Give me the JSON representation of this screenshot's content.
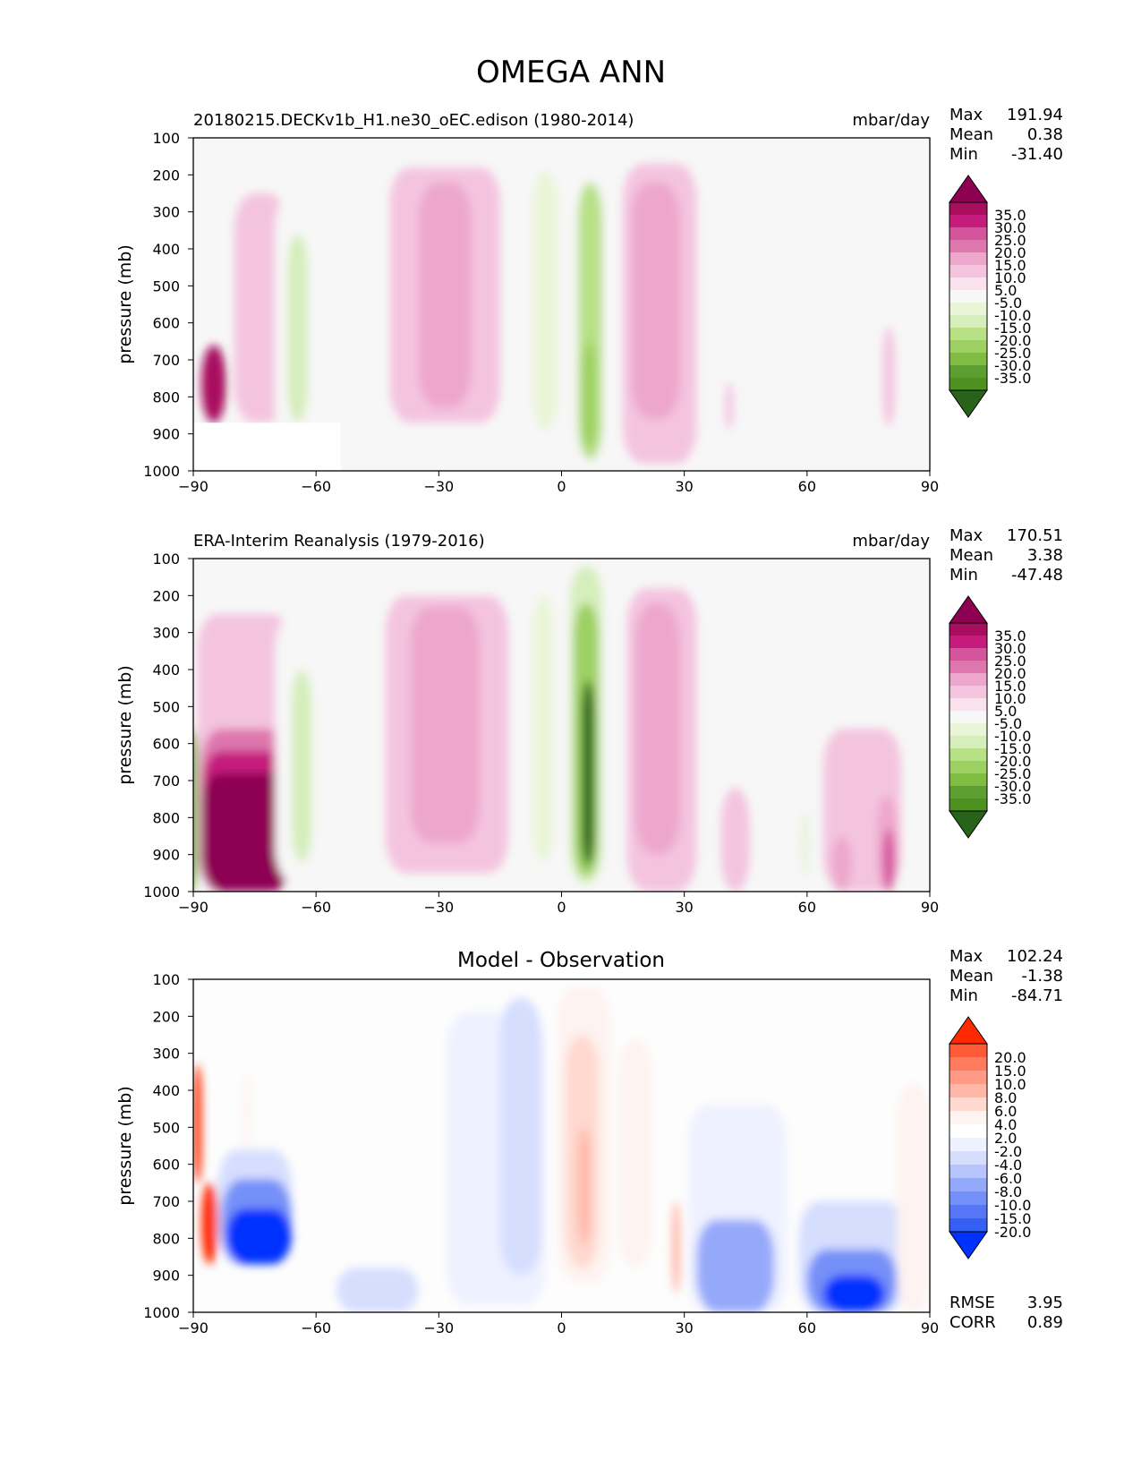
{
  "title": "OMEGA ANN",
  "palettes": {
    "field": [
      "#8e0152",
      "#a80e5e",
      "#c51b7d",
      "#d5559c",
      "#de77ae",
      "#eda7cc",
      "#f4c4df",
      "#f9e1ee",
      "#f7f7f7",
      "#e9f5d6",
      "#d5eebb",
      "#b8e186",
      "#9dd062",
      "#7fbc41",
      "#5c9e32",
      "#4d9221",
      "#276419"
    ],
    "diff": [
      "#ff2a00",
      "#ff5a38",
      "#ff7b5e",
      "#ff9a84",
      "#ffb8a8",
      "#ffd8cf",
      "#fdf3f0",
      "#ffffff",
      "#eef1ff",
      "#d6defe",
      "#b7c5fc",
      "#95a9fa",
      "#7490f8",
      "#5577f6",
      "#3660f5",
      "#0032ff"
    ]
  },
  "colorbars": {
    "field": {
      "ticks": [
        "35.0",
        "30.0",
        "25.0",
        "20.0",
        "15.0",
        "10.0",
        "5.0",
        "-5.0",
        "-10.0",
        "-15.0",
        "-20.0",
        "-25.0",
        "-30.0",
        "-35.0"
      ]
    },
    "diff": {
      "ticks": [
        "20.0",
        "15.0",
        "10.0",
        "8.0",
        "6.0",
        "4.0",
        "2.0",
        "-2.0",
        "-4.0",
        "-6.0",
        "-8.0",
        "-10.0",
        "-15.0",
        "-20.0"
      ]
    }
  },
  "chart_data": [
    {
      "type": "heatmap",
      "id": "model",
      "title": "20180215.DECKv1b_H1.ne30_oEC.edison (1980-2014)",
      "units": "mbar/day",
      "xlabel": "",
      "ylabel": "pressure (mb)",
      "xlim": [
        -90,
        90
      ],
      "ylim": [
        100,
        1000
      ],
      "xticks": [
        "−90",
        "−60",
        "−30",
        "0",
        "30",
        "60",
        "90"
      ],
      "yticks": [
        "100",
        "200",
        "300",
        "400",
        "500",
        "600",
        "700",
        "800",
        "900",
        "1000"
      ],
      "stats": {
        "max_label": "Max",
        "max": "191.94",
        "mean_label": "Mean",
        "mean": "0.38",
        "min_label": "Min",
        "min": "-31.40"
      },
      "features": [
        {
          "lat": [
            -80,
            -67
          ],
          "p": [
            250,
            870
          ],
          "level": 10
        },
        {
          "lat": [
            -88,
            -82
          ],
          "p": [
            660,
            870
          ],
          "level": 32
        },
        {
          "lat": [
            -70,
            -51
          ],
          "p": [
            250,
            1000
          ],
          "level": -8
        },
        {
          "lat": [
            -67,
            -62
          ],
          "p": [
            360,
            870
          ],
          "level": -17
        },
        {
          "lat": [
            -42,
            -15
          ],
          "p": [
            180,
            870
          ],
          "level": 8
        },
        {
          "lat": [
            -35,
            -22
          ],
          "p": [
            220,
            830
          ],
          "level": 12
        },
        {
          "lat": [
            -9,
            12
          ],
          "p": [
            160,
            990
          ],
          "level": -8
        },
        {
          "lat": [
            -7,
            -1
          ],
          "p": [
            190,
            890
          ],
          "level": -14
        },
        {
          "lat": [
            4,
            10
          ],
          "p": [
            220,
            970
          ],
          "level": -20
        },
        {
          "lat": [
            5,
            8.5
          ],
          "p": [
            650,
            940
          ],
          "level": -29
        },
        {
          "lat": [
            15,
            33
          ],
          "p": [
            170,
            980
          ],
          "level": 8
        },
        {
          "lat": [
            17,
            29
          ],
          "p": [
            220,
            860
          ],
          "level": 12
        },
        {
          "lat": [
            49,
            62
          ],
          "p": [
            500,
            1000
          ],
          "level": -8
        },
        {
          "lat": [
            78.5,
            81.5
          ],
          "p": [
            610,
            880
          ],
          "level": 8
        },
        {
          "lat": [
            40,
            42
          ],
          "p": [
            760,
            890
          ],
          "level": 8
        }
      ],
      "mask": {
        "lat_max": -54,
        "p_min": 870
      }
    },
    {
      "type": "heatmap",
      "id": "obs",
      "title": "ERA-Interim Reanalysis (1979-2016)",
      "units": "mbar/day",
      "xlabel": "",
      "ylabel": "pressure (mb)",
      "xlim": [
        -90,
        90
      ],
      "ylim": [
        100,
        1000
      ],
      "xticks": [
        "−90",
        "−60",
        "−30",
        "0",
        "30",
        "60",
        "90"
      ],
      "yticks": [
        "100",
        "200",
        "300",
        "400",
        "500",
        "600",
        "700",
        "800",
        "900",
        "1000"
      ],
      "stats": {
        "max_label": "Max",
        "max": "170.51",
        "mean_label": "Mean",
        "mean": "3.38",
        "min_label": "Min",
        "min": "-47.48"
      },
      "features": [
        {
          "lat": [
            -89,
            -66
          ],
          "p": [
            250,
            1000
          ],
          "level": 10
        },
        {
          "lat": [
            -88,
            -67
          ],
          "p": [
            560,
            1000
          ],
          "level": 18
        },
        {
          "lat": [
            -88,
            -67
          ],
          "p": [
            620,
            1000
          ],
          "level": 26
        },
        {
          "lat": [
            -88,
            -66
          ],
          "p": [
            680,
            1000
          ],
          "level": 36
        },
        {
          "lat": [
            -92,
            -89
          ],
          "p": [
            560,
            1000
          ],
          "level": -32
        },
        {
          "lat": [
            -70,
            -52
          ],
          "p": [
            250,
            980
          ],
          "level": -8
        },
        {
          "lat": [
            -66,
            -61
          ],
          "p": [
            400,
            920
          ],
          "level": -15
        },
        {
          "lat": [
            -43,
            -13
          ],
          "p": [
            200,
            950
          ],
          "level": 8
        },
        {
          "lat": [
            -37,
            -20
          ],
          "p": [
            230,
            870
          ],
          "level": 12
        },
        {
          "lat": [
            -10,
            12
          ],
          "p": [
            150,
            990
          ],
          "level": -8
        },
        {
          "lat": [
            -7,
            -2
          ],
          "p": [
            200,
            920
          ],
          "level": -14
        },
        {
          "lat": [
            2,
            10
          ],
          "p": [
            120,
            980
          ],
          "level": -18
        },
        {
          "lat": [
            3,
            9
          ],
          "p": [
            220,
            960
          ],
          "level": -26
        },
        {
          "lat": [
            5,
            8
          ],
          "p": [
            430,
            930
          ],
          "level": -36
        },
        {
          "lat": [
            16,
            33
          ],
          "p": [
            180,
            1000
          ],
          "level": 8
        },
        {
          "lat": [
            18,
            29
          ],
          "p": [
            220,
            900
          ],
          "level": 12
        },
        {
          "lat": [
            53,
            61
          ],
          "p": [
            560,
            1000
          ],
          "level": -8
        },
        {
          "lat": [
            59,
            60
          ],
          "p": [
            780,
            960
          ],
          "level": -16
        },
        {
          "lat": [
            64,
            83
          ],
          "p": [
            560,
            1000
          ],
          "level": 8
        },
        {
          "lat": [
            66,
            71
          ],
          "p": [
            850,
            1000
          ],
          "level": 14
        },
        {
          "lat": [
            77,
            82
          ],
          "p": [
            740,
            1000
          ],
          "level": 14
        },
        {
          "lat": [
            78.5,
            81.5
          ],
          "p": [
            830,
            1000
          ],
          "level": 24
        },
        {
          "lat": [
            39,
            46
          ],
          "p": [
            720,
            1000
          ],
          "level": 8
        }
      ],
      "mask": null
    },
    {
      "type": "heatmap",
      "id": "diff",
      "title": "Model - Observation",
      "units": "",
      "xlabel": "",
      "ylabel": "pressure (mb)",
      "xlim": [
        -90,
        90
      ],
      "ylim": [
        100,
        1000
      ],
      "xticks": [
        "−90",
        "−60",
        "−30",
        "0",
        "30",
        "60",
        "90"
      ],
      "yticks": [
        "100",
        "200",
        "300",
        "400",
        "500",
        "600",
        "700",
        "800",
        "900",
        "1000"
      ],
      "stats": {
        "max_label": "Max",
        "max": "102.24",
        "mean_label": "Mean",
        "mean": "-1.38",
        "min_label": "Min",
        "min": "-84.71"
      },
      "metrics": {
        "rmse_label": "RMSE",
        "rmse": "3.95",
        "corr_label": "CORR",
        "corr": "0.89"
      },
      "features": [
        {
          "lat": [
            -90,
            -88
          ],
          "p": [
            330,
            650
          ],
          "level": 25
        },
        {
          "lat": [
            -88,
            -84
          ],
          "p": [
            650,
            870
          ],
          "level": 25
        },
        {
          "lat": [
            -84,
            -66
          ],
          "p": [
            560,
            870
          ],
          "level": -5
        },
        {
          "lat": [
            -83,
            -66
          ],
          "p": [
            640,
            870
          ],
          "level": -10
        },
        {
          "lat": [
            -82,
            -66
          ],
          "p": [
            720,
            870
          ],
          "level": -25
        },
        {
          "lat": [
            -78,
            -76
          ],
          "p": [
            350,
            560
          ],
          "level": 3
        },
        {
          "lat": [
            -55,
            -35
          ],
          "p": [
            880,
            1000
          ],
          "level": -5
        },
        {
          "lat": [
            -28,
            -4
          ],
          "p": [
            190,
            980
          ],
          "level": -3
        },
        {
          "lat": [
            -15,
            -5
          ],
          "p": [
            150,
            900
          ],
          "level": -5
        },
        {
          "lat": [
            -1,
            12
          ],
          "p": [
            120,
            920
          ],
          "level": 3
        },
        {
          "lat": [
            1,
            9
          ],
          "p": [
            250,
            880
          ],
          "level": 5
        },
        {
          "lat": [
            4,
            7
          ],
          "p": [
            500,
            820
          ],
          "level": 7
        },
        {
          "lat": [
            14,
            22
          ],
          "p": [
            260,
            880
          ],
          "level": 3
        },
        {
          "lat": [
            27,
            29
          ],
          "p": [
            700,
            950
          ],
          "level": 7
        },
        {
          "lat": [
            31,
            55
          ],
          "p": [
            440,
            1000
          ],
          "level": -3
        },
        {
          "lat": [
            33,
            52
          ],
          "p": [
            750,
            1000
          ],
          "level": -8
        },
        {
          "lat": [
            58,
            84
          ],
          "p": [
            700,
            1000
          ],
          "level": -5
        },
        {
          "lat": [
            60,
            82
          ],
          "p": [
            830,
            1000
          ],
          "level": -14
        },
        {
          "lat": [
            64,
            79
          ],
          "p": [
            900,
            1000
          ],
          "level": -25
        },
        {
          "lat": [
            82,
            90
          ],
          "p": [
            380,
            1000
          ],
          "level": 3
        }
      ],
      "mask": null
    }
  ]
}
